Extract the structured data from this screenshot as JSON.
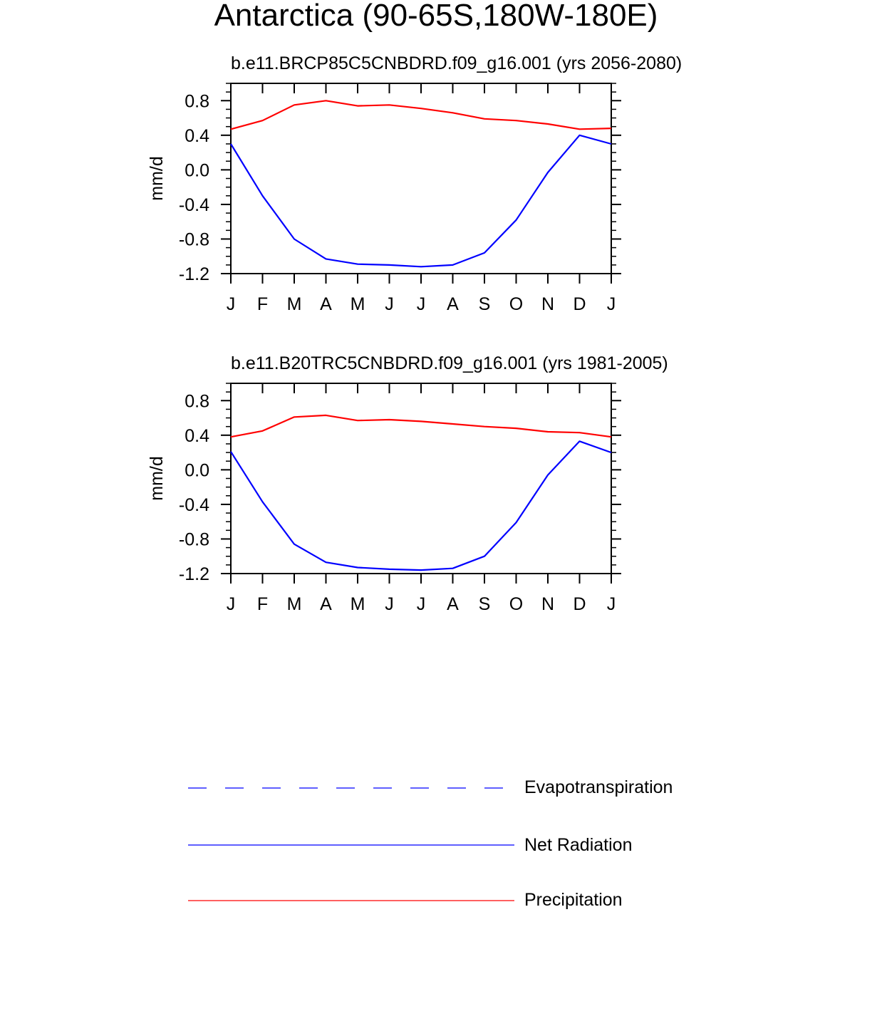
{
  "title": "Antarctica (90-65S,180W-180E)",
  "chart_data": [
    {
      "type": "line",
      "title": "b.e11.BRCP85C5CNBDRD.f09_g16.001 (yrs 2056-2080)",
      "ylabel": "mm/d",
      "xlabel": "",
      "ylim": [
        -1.2,
        1.0
      ],
      "yticks": [
        "0.8",
        "0.4",
        "0.0",
        "-0.4",
        "-0.8",
        "-1.2"
      ],
      "categories": [
        "J",
        "F",
        "M",
        "A",
        "M",
        "J",
        "J",
        "A",
        "S",
        "O",
        "N",
        "D",
        "J"
      ],
      "series": [
        {
          "name": "Precipitation",
          "color": "#ff0000",
          "values": [
            0.47,
            0.57,
            0.75,
            0.8,
            0.74,
            0.75,
            0.71,
            0.66,
            0.59,
            0.57,
            0.53,
            0.47,
            0.48
          ]
        },
        {
          "name": "Net Radiation",
          "color": "#0000ff",
          "values": [
            0.3,
            -0.3,
            -0.8,
            -1.03,
            -1.09,
            -1.1,
            -1.12,
            -1.1,
            -0.96,
            -0.58,
            -0.03,
            0.4,
            0.3
          ]
        }
      ]
    },
    {
      "type": "line",
      "title": "b.e11.B20TRC5CNBDRD.f09_g16.001 (yrs 1981-2005)",
      "ylabel": "mm/d",
      "xlabel": "",
      "ylim": [
        -1.2,
        1.0
      ],
      "yticks": [
        "0.8",
        "0.4",
        "0.0",
        "-0.4",
        "-0.8",
        "-1.2"
      ],
      "categories": [
        "J",
        "F",
        "M",
        "A",
        "M",
        "J",
        "J",
        "A",
        "S",
        "O",
        "N",
        "D",
        "J"
      ],
      "series": [
        {
          "name": "Precipitation",
          "color": "#ff0000",
          "values": [
            0.38,
            0.45,
            0.61,
            0.63,
            0.57,
            0.58,
            0.56,
            0.53,
            0.5,
            0.48,
            0.44,
            0.43,
            0.38
          ]
        },
        {
          "name": "Net Radiation",
          "color": "#0000ff",
          "values": [
            0.21,
            -0.37,
            -0.86,
            -1.07,
            -1.13,
            -1.15,
            -1.16,
            -1.14,
            -1.0,
            -0.61,
            -0.06,
            0.33,
            0.2
          ]
        }
      ]
    }
  ],
  "legend": [
    {
      "label": "Evapotranspiration",
      "color": "#0000ff",
      "style": "dashed"
    },
    {
      "label": "Net Radiation",
      "color": "#0000ff",
      "style": "solid"
    },
    {
      "label": "Precipitation",
      "color": "#ff0000",
      "style": "solid"
    }
  ]
}
